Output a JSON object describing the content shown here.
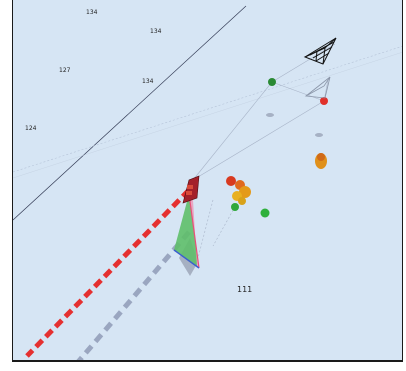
{
  "chart": {
    "soundings": [
      {
        "id": "s1",
        "value": "134"
      },
      {
        "id": "s2",
        "value": "134"
      },
      {
        "id": "s3",
        "value": "127"
      },
      {
        "id": "s4",
        "value": "134"
      },
      {
        "id": "s5",
        "value": "124"
      },
      {
        "id": "s6",
        "value": "111"
      }
    ],
    "colors": {
      "water": "#d6e5f4",
      "own_ship": "#c0392b",
      "heading_line": "#e53030",
      "predicted_track": "#9aa6c0",
      "green_target": "#2faa3c",
      "red_target": "#e0302a",
      "orange_cluster": "#e0901a",
      "sector_fill": "#5fbf6a",
      "sector_edge": "#e8507a",
      "sector_base": "#3a5fd0"
    },
    "icons": [
      "own-ship-icon",
      "radar-cone-icon",
      "target-marker-icon"
    ]
  }
}
